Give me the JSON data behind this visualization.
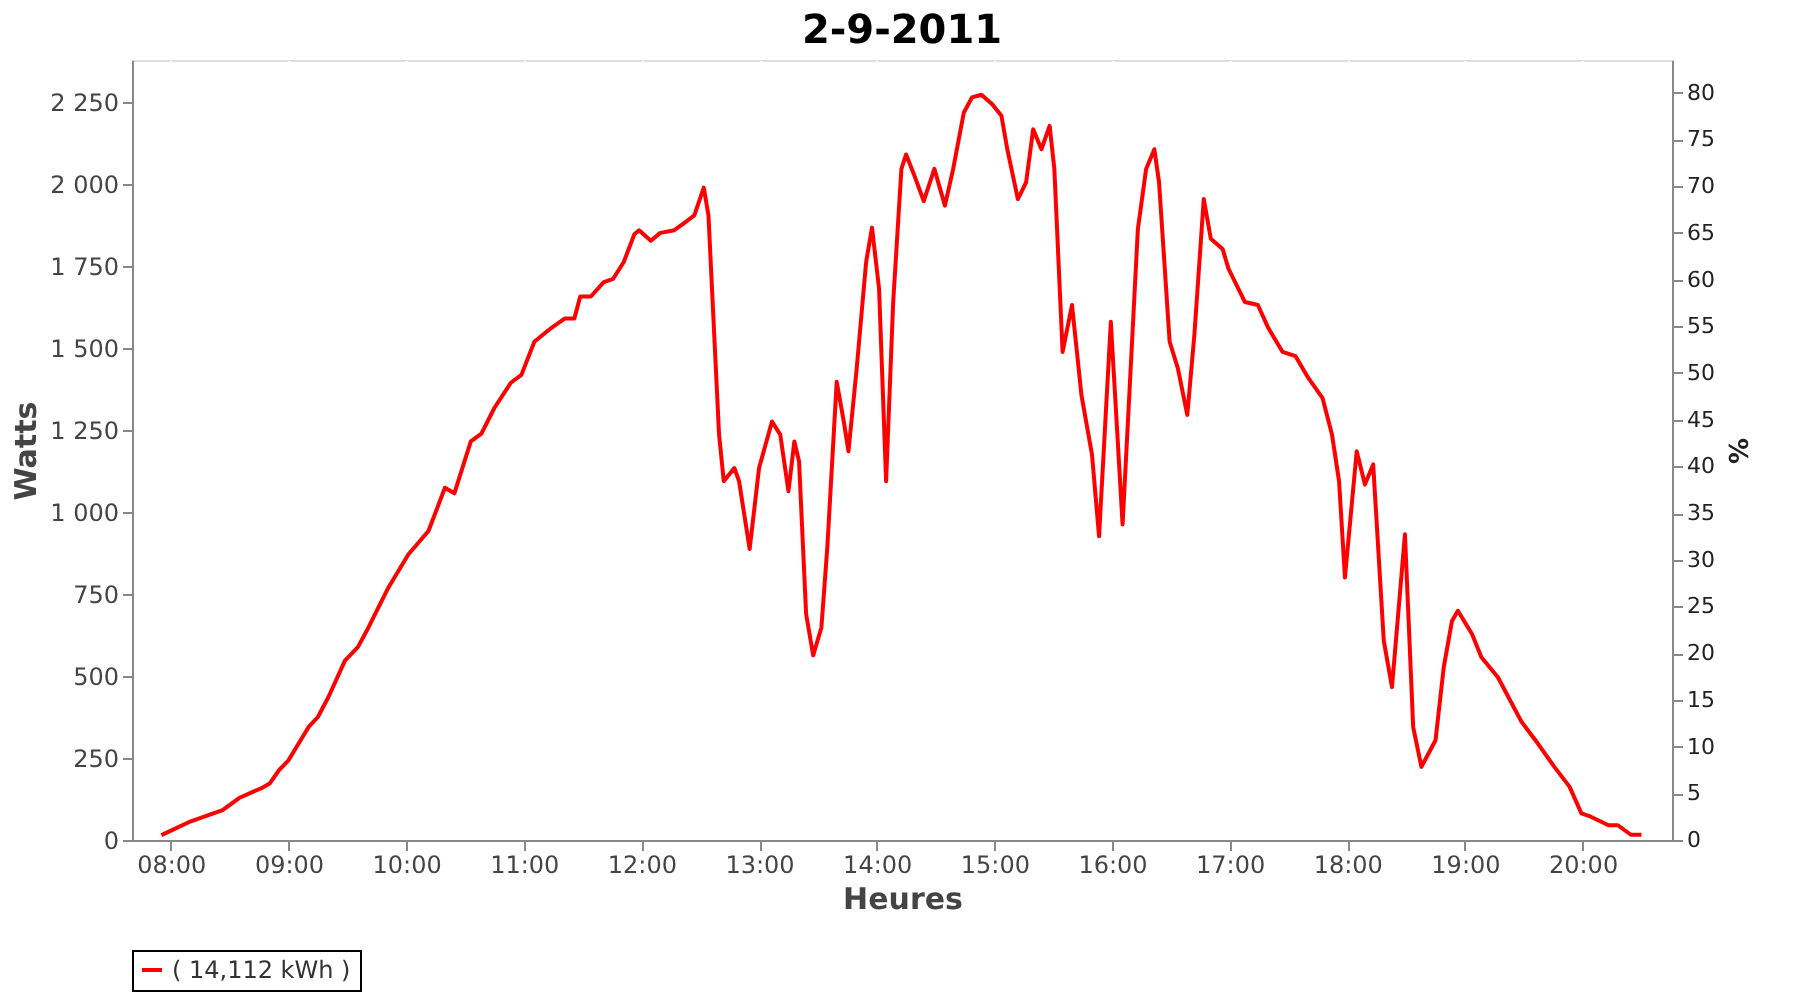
{
  "chart_data": {
    "type": "line",
    "title": "2-9-2011",
    "xlabel": "Heures",
    "ylabel": "Watts",
    "y2label": "%",
    "xlim": [
      7.67,
      20.76
    ],
    "xticks": [
      {
        "value": 8,
        "label": "08:00"
      },
      {
        "value": 9,
        "label": "09:00"
      },
      {
        "value": 10,
        "label": "10:00"
      },
      {
        "value": 11,
        "label": "11:00"
      },
      {
        "value": 12,
        "label": "12:00"
      },
      {
        "value": 13,
        "label": "13:00"
      },
      {
        "value": 14,
        "label": "14:00"
      },
      {
        "value": 15,
        "label": "15:00"
      },
      {
        "value": 16,
        "label": "16:00"
      },
      {
        "value": 17,
        "label": "17:00"
      },
      {
        "value": 18,
        "label": "18:00"
      },
      {
        "value": 19,
        "label": "19:00"
      },
      {
        "value": 20,
        "label": "20:00"
      }
    ],
    "ylim": [
      0,
      2378
    ],
    "yticks": [
      0,
      250,
      500,
      750,
      {
        "value": 1000,
        "label": "1 000"
      },
      {
        "value": 1250,
        "label": "1 250"
      },
      {
        "value": 1500,
        "label": "1 500"
      },
      {
        "value": 1750,
        "label": "1 750"
      },
      {
        "value": 2000,
        "label": "2 000"
      },
      {
        "value": 2250,
        "label": "2 250"
      }
    ],
    "y2lim": [
      0,
      83.5
    ],
    "y2ticks": [
      0,
      5,
      10,
      15,
      20,
      25,
      30,
      35,
      40,
      45,
      50,
      55,
      60,
      65,
      70,
      75,
      80
    ],
    "grid": true,
    "legend": "bottom",
    "line_style": "solid",
    "marker": "none",
    "series": [
      {
        "name": "( 14,112 kWh )",
        "color": "#ff0000",
        "x": [
          7.92,
          8.17,
          8.44,
          8.58,
          8.77,
          8.84,
          8.92,
          9.0,
          9.17,
          9.25,
          9.34,
          9.48,
          9.59,
          9.68,
          9.85,
          10.02,
          10.19,
          10.33,
          10.41,
          10.55,
          10.64,
          10.75,
          10.89,
          10.98,
          11.09,
          11.23,
          11.35,
          11.43,
          11.48,
          11.57,
          11.68,
          11.76,
          11.85,
          11.94,
          11.98,
          12.08,
          12.16,
          12.28,
          12.36,
          12.45,
          12.53,
          12.57,
          12.66,
          12.7,
          12.79,
          12.83,
          12.92,
          13.0,
          13.11,
          13.18,
          13.25,
          13.3,
          13.34,
          13.4,
          13.46,
          13.53,
          13.58,
          13.66,
          13.72,
          13.76,
          13.83,
          13.91,
          13.96,
          14.02,
          14.08,
          14.14,
          14.21,
          14.25,
          14.32,
          14.4,
          14.49,
          14.58,
          14.65,
          14.74,
          14.81,
          14.89,
          14.98,
          15.06,
          15.11,
          15.2,
          15.27,
          15.33,
          15.4,
          15.47,
          15.51,
          15.58,
          15.66,
          15.74,
          15.83,
          15.89,
          15.99,
          16.09,
          16.15,
          16.22,
          16.29,
          16.36,
          16.4,
          16.49,
          16.56,
          16.64,
          16.7,
          16.78,
          16.84,
          16.94,
          16.99,
          17.13,
          17.24,
          17.33,
          17.45,
          17.56,
          17.67,
          17.79,
          17.87,
          17.93,
          17.98,
          18.08,
          18.15,
          18.22,
          18.31,
          18.38,
          18.49,
          18.56,
          18.63,
          18.75,
          18.82,
          18.89,
          18.94,
          19.06,
          19.14,
          19.28,
          19.48,
          19.62,
          19.76,
          19.89,
          19.99,
          20.07,
          20.22,
          20.3,
          20.41,
          20.5
        ],
        "values": [
          15,
          57,
          91,
          128,
          158,
          172,
          213,
          243,
          344,
          375,
          436,
          547,
          588,
          648,
          770,
          871,
          942,
          1074,
          1057,
          1215,
          1239,
          1317,
          1394,
          1418,
          1519,
          1560,
          1590,
          1590,
          1657,
          1657,
          1701,
          1711,
          1762,
          1847,
          1859,
          1827,
          1851,
          1859,
          1880,
          1904,
          1989,
          1904,
          1236,
          1094,
          1134,
          1094,
          887,
          1134,
          1276,
          1236,
          1063,
          1215,
          1154,
          689,
          563,
          648,
          891,
          1397,
          1276,
          1185,
          1438,
          1762,
          1867,
          1681,
          1094,
          1640,
          2046,
          2090,
          2026,
          1948,
          2046,
          1934,
          2046,
          2217,
          2264,
          2272,
          2244,
          2208,
          2106,
          1954,
          2005,
          2167,
          2106,
          2177,
          2046,
          1488,
          1631,
          1357,
          1175,
          926,
          1580,
          962,
          1377,
          1863,
          2046,
          2106,
          2005,
          1519,
          1438,
          1296,
          1539,
          1954,
          1833,
          1802,
          1742,
          1640,
          1631,
          1560,
          1488,
          1475,
          1408,
          1347,
          1236,
          1094,
          800,
          1185,
          1084,
          1145,
          608,
          466,
          932,
          344,
          223,
          304,
          527,
          668,
          699,
          628,
          557,
          496,
          361,
          294,
          223,
          162,
          81,
          71,
          45,
          45,
          16,
          16
        ]
      }
    ]
  }
}
